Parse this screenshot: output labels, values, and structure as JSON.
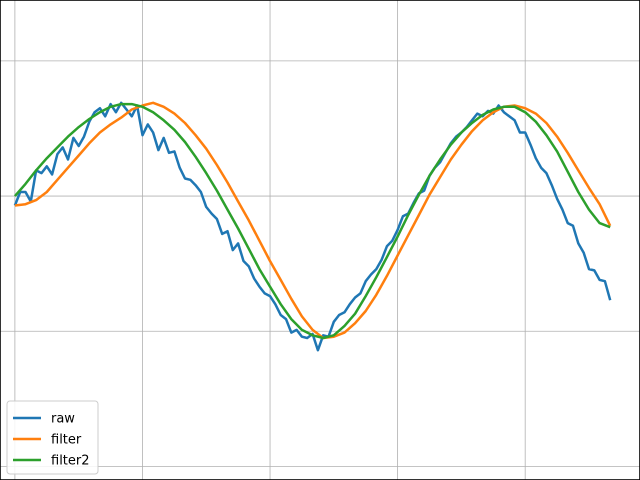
{
  "chart_data": {
    "type": "line",
    "title": "",
    "xlabel": "",
    "ylabel": "",
    "xlim": [
      -0.14,
      5.88
    ],
    "ylim": [
      -1.1,
      2.45
    ],
    "xticks": [
      0,
      1.2,
      2.4,
      3.6,
      4.8
    ],
    "yticks": [
      -1,
      0,
      1,
      2
    ],
    "grid": true,
    "legend_position": "lower-left",
    "series": [
      {
        "name": "raw",
        "color": "#1f77b4",
        "points": [
          [
            0.0,
            0.93
          ],
          [
            0.05,
            1.03
          ],
          [
            0.1,
            1.03
          ],
          [
            0.15,
            0.96
          ],
          [
            0.2,
            1.19
          ],
          [
            0.25,
            1.17
          ],
          [
            0.3,
            1.22
          ],
          [
            0.35,
            1.16
          ],
          [
            0.4,
            1.31
          ],
          [
            0.45,
            1.36
          ],
          [
            0.5,
            1.27
          ],
          [
            0.55,
            1.43
          ],
          [
            0.6,
            1.37
          ],
          [
            0.65,
            1.44
          ],
          [
            0.7,
            1.55
          ],
          [
            0.75,
            1.62
          ],
          [
            0.8,
            1.65
          ],
          [
            0.85,
            1.59
          ],
          [
            0.9,
            1.68
          ],
          [
            0.95,
            1.62
          ],
          [
            1.0,
            1.69
          ],
          [
            1.05,
            1.64
          ],
          [
            1.1,
            1.59
          ],
          [
            1.15,
            1.67
          ],
          [
            1.2,
            1.45
          ],
          [
            1.25,
            1.53
          ],
          [
            1.3,
            1.47
          ],
          [
            1.35,
            1.34
          ],
          [
            1.4,
            1.43
          ],
          [
            1.45,
            1.32
          ],
          [
            1.5,
            1.33
          ],
          [
            1.55,
            1.21
          ],
          [
            1.6,
            1.13
          ],
          [
            1.65,
            1.12
          ],
          [
            1.7,
            1.08
          ],
          [
            1.75,
            1.03
          ],
          [
            1.8,
            0.92
          ],
          [
            1.85,
            0.87
          ],
          [
            1.9,
            0.83
          ],
          [
            1.95,
            0.72
          ],
          [
            2.0,
            0.74
          ],
          [
            2.05,
            0.6
          ],
          [
            2.1,
            0.65
          ],
          [
            2.15,
            0.52
          ],
          [
            2.2,
            0.48
          ],
          [
            2.25,
            0.39
          ],
          [
            2.3,
            0.33
          ],
          [
            2.35,
            0.28
          ],
          [
            2.4,
            0.26
          ],
          [
            2.45,
            0.2
          ],
          [
            2.5,
            0.12
          ],
          [
            2.55,
            0.09
          ],
          [
            2.6,
            -0.01
          ],
          [
            2.65,
            0.01
          ],
          [
            2.7,
            -0.04
          ],
          [
            2.75,
            -0.05
          ],
          [
            2.8,
            -0.02
          ],
          [
            2.85,
            -0.14
          ],
          [
            2.9,
            -0.03
          ],
          [
            2.95,
            -0.04
          ],
          [
            3.0,
            0.07
          ],
          [
            3.05,
            0.12
          ],
          [
            3.1,
            0.14
          ],
          [
            3.15,
            0.2
          ],
          [
            3.2,
            0.25
          ],
          [
            3.25,
            0.28
          ],
          [
            3.3,
            0.37
          ],
          [
            3.35,
            0.42
          ],
          [
            3.4,
            0.46
          ],
          [
            3.45,
            0.53
          ],
          [
            3.5,
            0.63
          ],
          [
            3.55,
            0.67
          ],
          [
            3.6,
            0.75
          ],
          [
            3.65,
            0.85
          ],
          [
            3.7,
            0.87
          ],
          [
            3.75,
            0.95
          ],
          [
            3.8,
            1.02
          ],
          [
            3.85,
            1.04
          ],
          [
            3.9,
            1.15
          ],
          [
            3.95,
            1.21
          ],
          [
            4.0,
            1.25
          ],
          [
            4.05,
            1.32
          ],
          [
            4.1,
            1.39
          ],
          [
            4.15,
            1.44
          ],
          [
            4.2,
            1.47
          ],
          [
            4.25,
            1.51
          ],
          [
            4.3,
            1.56
          ],
          [
            4.35,
            1.61
          ],
          [
            4.4,
            1.59
          ],
          [
            4.45,
            1.63
          ],
          [
            4.5,
            1.61
          ],
          [
            4.55,
            1.67
          ],
          [
            4.6,
            1.62
          ],
          [
            4.65,
            1.59
          ],
          [
            4.7,
            1.56
          ],
          [
            4.75,
            1.47
          ],
          [
            4.8,
            1.47
          ],
          [
            4.85,
            1.38
          ],
          [
            4.9,
            1.28
          ],
          [
            4.95,
            1.21
          ],
          [
            5.0,
            1.17
          ],
          [
            5.05,
            1.08
          ],
          [
            5.1,
            0.98
          ],
          [
            5.15,
            0.9
          ],
          [
            5.2,
            0.8
          ],
          [
            5.25,
            0.78
          ],
          [
            5.3,
            0.65
          ],
          [
            5.35,
            0.58
          ],
          [
            5.4,
            0.46
          ],
          [
            5.45,
            0.45
          ],
          [
            5.5,
            0.38
          ],
          [
            5.55,
            0.37
          ],
          [
            5.6,
            0.23
          ]
        ]
      },
      {
        "name": "filter",
        "color": "#ff7f0e",
        "points": [
          [
            0.0,
            0.93
          ],
          [
            0.1,
            0.94
          ],
          [
            0.2,
            0.97
          ],
          [
            0.3,
            1.03
          ],
          [
            0.4,
            1.12
          ],
          [
            0.5,
            1.21
          ],
          [
            0.6,
            1.3
          ],
          [
            0.7,
            1.39
          ],
          [
            0.8,
            1.47
          ],
          [
            0.9,
            1.53
          ],
          [
            1.0,
            1.58
          ],
          [
            1.1,
            1.64
          ],
          [
            1.2,
            1.67
          ],
          [
            1.3,
            1.69
          ],
          [
            1.4,
            1.66
          ],
          [
            1.5,
            1.61
          ],
          [
            1.6,
            1.54
          ],
          [
            1.7,
            1.45
          ],
          [
            1.8,
            1.35
          ],
          [
            1.9,
            1.23
          ],
          [
            2.0,
            1.1
          ],
          [
            2.1,
            0.96
          ],
          [
            2.2,
            0.82
          ],
          [
            2.3,
            0.67
          ],
          [
            2.4,
            0.52
          ],
          [
            2.5,
            0.38
          ],
          [
            2.6,
            0.24
          ],
          [
            2.7,
            0.11
          ],
          [
            2.8,
            0.01
          ],
          [
            2.9,
            -0.05
          ],
          [
            3.0,
            -0.04
          ],
          [
            3.1,
            -0.01
          ],
          [
            3.2,
            0.06
          ],
          [
            3.3,
            0.15
          ],
          [
            3.4,
            0.27
          ],
          [
            3.5,
            0.41
          ],
          [
            3.6,
            0.56
          ],
          [
            3.7,
            0.71
          ],
          [
            3.8,
            0.86
          ],
          [
            3.9,
            1.01
          ],
          [
            4.0,
            1.14
          ],
          [
            4.1,
            1.27
          ],
          [
            4.2,
            1.38
          ],
          [
            4.3,
            1.48
          ],
          [
            4.4,
            1.56
          ],
          [
            4.5,
            1.62
          ],
          [
            4.6,
            1.66
          ],
          [
            4.7,
            1.67
          ],
          [
            4.8,
            1.65
          ],
          [
            4.9,
            1.61
          ],
          [
            5.0,
            1.54
          ],
          [
            5.1,
            1.44
          ],
          [
            5.2,
            1.32
          ],
          [
            5.3,
            1.19
          ],
          [
            5.4,
            1.06
          ],
          [
            5.5,
            0.94
          ],
          [
            5.6,
            0.78
          ]
        ]
      },
      {
        "name": "filter2",
        "color": "#2ca02c",
        "points": [
          [
            0.0,
            1.0
          ],
          [
            0.1,
            1.09
          ],
          [
            0.2,
            1.19
          ],
          [
            0.3,
            1.28
          ],
          [
            0.4,
            1.36
          ],
          [
            0.5,
            1.44
          ],
          [
            0.6,
            1.51
          ],
          [
            0.7,
            1.57
          ],
          [
            0.8,
            1.62
          ],
          [
            0.9,
            1.66
          ],
          [
            1.0,
            1.68
          ],
          [
            1.1,
            1.68
          ],
          [
            1.2,
            1.66
          ],
          [
            1.3,
            1.62
          ],
          [
            1.4,
            1.56
          ],
          [
            1.5,
            1.49
          ],
          [
            1.6,
            1.4
          ],
          [
            1.7,
            1.29
          ],
          [
            1.8,
            1.17
          ],
          [
            1.9,
            1.04
          ],
          [
            2.0,
            0.9
          ],
          [
            2.1,
            0.76
          ],
          [
            2.2,
            0.61
          ],
          [
            2.3,
            0.46
          ],
          [
            2.4,
            0.33
          ],
          [
            2.5,
            0.2
          ],
          [
            2.6,
            0.09
          ],
          [
            2.7,
            0.01
          ],
          [
            2.8,
            -0.03
          ],
          [
            2.9,
            -0.05
          ],
          [
            3.0,
            -0.03
          ],
          [
            3.1,
            0.04
          ],
          [
            3.2,
            0.13
          ],
          [
            3.3,
            0.26
          ],
          [
            3.4,
            0.4
          ],
          [
            3.5,
            0.55
          ],
          [
            3.6,
            0.7
          ],
          [
            3.7,
            0.86
          ],
          [
            3.8,
            1.01
          ],
          [
            3.9,
            1.15
          ],
          [
            4.0,
            1.27
          ],
          [
            4.1,
            1.38
          ],
          [
            4.2,
            1.47
          ],
          [
            4.3,
            1.54
          ],
          [
            4.4,
            1.6
          ],
          [
            4.5,
            1.64
          ],
          [
            4.6,
            1.66
          ],
          [
            4.7,
            1.66
          ],
          [
            4.8,
            1.62
          ],
          [
            4.9,
            1.55
          ],
          [
            5.0,
            1.45
          ],
          [
            5.1,
            1.33
          ],
          [
            5.2,
            1.18
          ],
          [
            5.3,
            1.03
          ],
          [
            5.4,
            0.9
          ],
          [
            5.5,
            0.8
          ],
          [
            5.6,
            0.77
          ]
        ]
      }
    ]
  }
}
